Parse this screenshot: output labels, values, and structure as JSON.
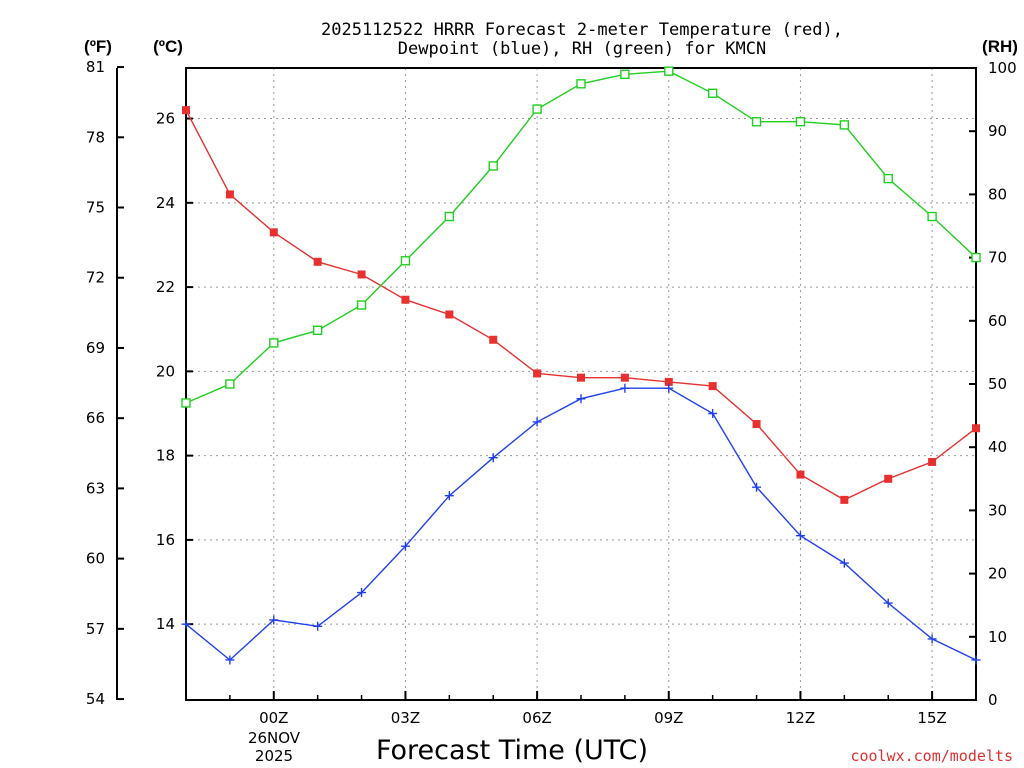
{
  "chart_data": {
    "type": "line",
    "title_line1": "2025112522 HRRR Forecast 2-meter Temperature (red),",
    "title_line2": "Dewpoint (blue), RH (green) for KMCN",
    "unit_f": "(ºF)",
    "unit_c": "(ºC)",
    "unit_rh": "(RH)",
    "xlabel": "Forecast Time (UTC)",
    "credit": "coolwx.com/modelts",
    "date_line1": "26NOV",
    "date_line2": "2025",
    "x_hours": [
      -2,
      -1,
      0,
      1,
      2,
      3,
      4,
      5,
      6,
      7,
      8,
      9,
      10,
      11,
      12,
      13,
      14,
      15,
      16
    ],
    "xlim": [
      -2,
      16
    ],
    "x_ticks": [
      {
        "h": 0,
        "label": "00Z"
      },
      {
        "h": 3,
        "label": "03Z"
      },
      {
        "h": 6,
        "label": "06Z"
      },
      {
        "h": 9,
        "label": "09Z"
      },
      {
        "h": 12,
        "label": "12Z"
      },
      {
        "h": 15,
        "label": "15Z"
      }
    ],
    "ylim_c": [
      12.2,
      27.2
    ],
    "y_c_ticks": [
      14,
      16,
      18,
      20,
      22,
      24,
      26
    ],
    "y_f_ticks": [
      54,
      57,
      60,
      63,
      66,
      69,
      72,
      75,
      78,
      81
    ],
    "ylim_rh": [
      0,
      100
    ],
    "y_rh_ticks": [
      0,
      10,
      20,
      30,
      40,
      50,
      60,
      70,
      80,
      90,
      100
    ],
    "series": [
      {
        "name": "Temperature",
        "axis": "c",
        "color": "#e83030",
        "marker": "filled-square",
        "values": [
          26.2,
          24.2,
          23.3,
          22.6,
          22.3,
          21.7,
          21.35,
          20.75,
          19.95,
          19.85,
          19.85,
          19.75,
          19.65,
          18.75,
          17.55,
          16.95,
          17.45,
          17.85,
          18.65
        ]
      },
      {
        "name": "Dewpoint",
        "axis": "c",
        "color": "#2040f0",
        "marker": "plus",
        "values": [
          14.0,
          13.15,
          14.1,
          13.95,
          14.75,
          15.85,
          17.05,
          17.95,
          18.8,
          19.35,
          19.6,
          19.6,
          19.0,
          17.25,
          16.1,
          15.45,
          14.5,
          13.65,
          13.15
        ]
      },
      {
        "name": "RH",
        "axis": "rh",
        "color": "#20d020",
        "marker": "open-square",
        "values": [
          47,
          50,
          56.5,
          58.5,
          62.5,
          69.5,
          76.5,
          84.5,
          93.5,
          97.5,
          99,
          99.5,
          96,
          91.5,
          91.5,
          91,
          82.5,
          76.5,
          70
        ]
      }
    ]
  }
}
